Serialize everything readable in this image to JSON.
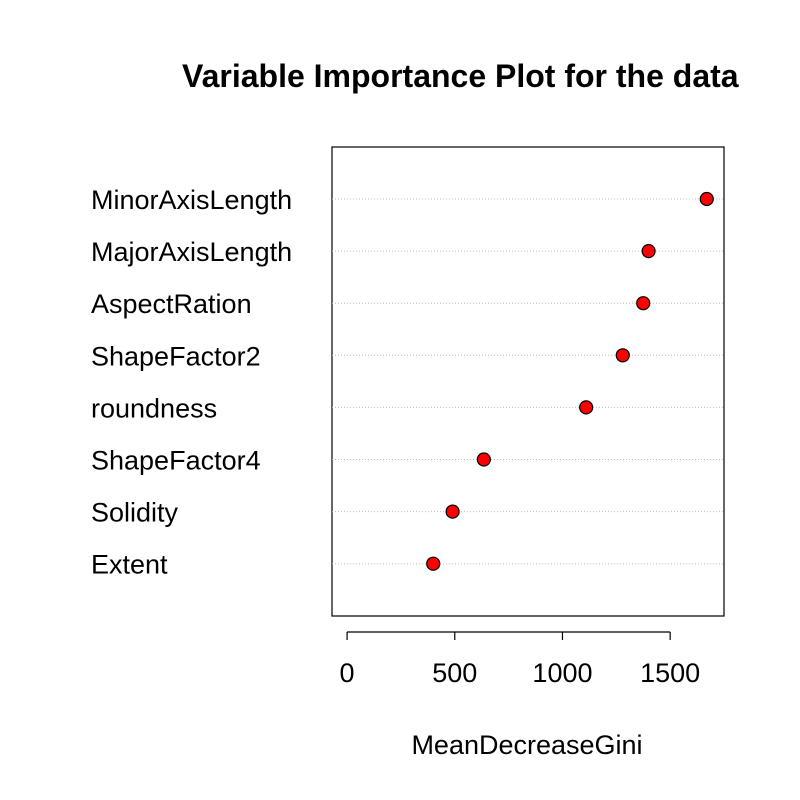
{
  "chart_data": {
    "type": "scatter",
    "title": "Variable Importance Plot for the data",
    "xlabel": "MeanDecreaseGini",
    "ylabel": "",
    "xlim": [
      -70,
      1750
    ],
    "x_ticks": [
      0,
      500,
      1000,
      1500
    ],
    "x_tick_labels": [
      "0",
      "500",
      "1000",
      "1500"
    ],
    "grid": "horizontal-dotted",
    "categories": [
      "MinorAxisLength",
      "MajorAxisLength",
      "AspectRation",
      "ShapeFactor2",
      "roundness",
      "ShapeFactor4",
      "Solidity",
      "Extent"
    ],
    "values": [
      1670,
      1400,
      1375,
      1280,
      1110,
      635,
      490,
      400
    ],
    "colors": {
      "point_fill": "#ff0000",
      "point_stroke": "#000000",
      "grid": "#bebebe",
      "axis": "#000000"
    }
  }
}
